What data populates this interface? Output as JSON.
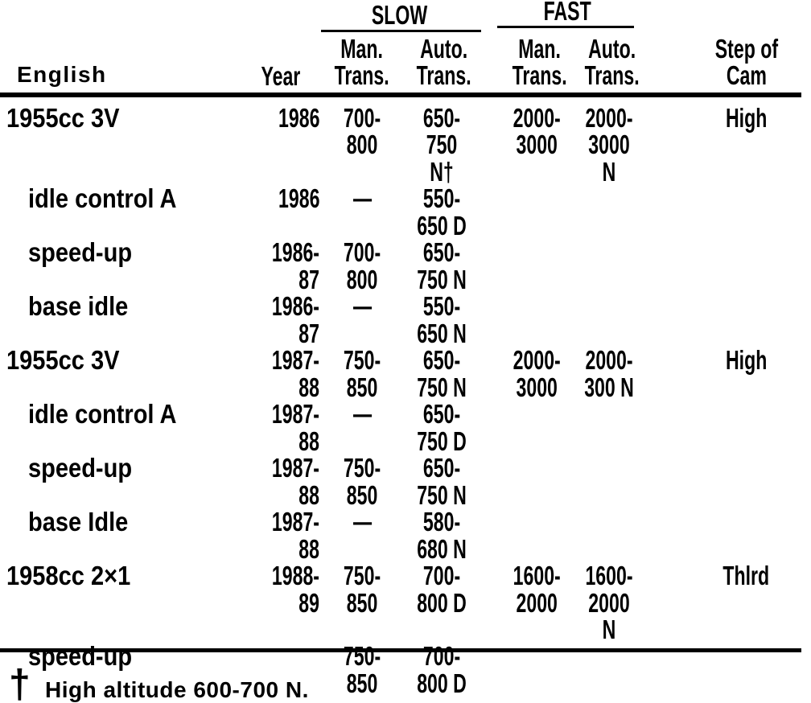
{
  "table": {
    "header": {
      "english": "English",
      "year": "Year",
      "slow_group": "SLOW",
      "fast_group": "FAST",
      "slow_man": "Man.\nTrans.",
      "slow_auto": "Auto.\nTrans.",
      "fast_man": "Man.\nTrans.",
      "fast_auto": "Auto.\nTrans.",
      "step_of_cam": "Step of\nCam"
    },
    "rows": [
      {
        "name": "1955cc 3V",
        "indent": false,
        "year": "1986",
        "slow_man": "700-\n800",
        "slow_auto": "650-\n750 N†",
        "fast_man": "2000-\n3000",
        "fast_auto": "2000-\n3000 N",
        "cam": "High"
      },
      {
        "name": "idle control A",
        "indent": true,
        "year": "1986",
        "slow_man": "—",
        "slow_auto": "550-\n650 D",
        "fast_man": "",
        "fast_auto": "",
        "cam": ""
      },
      {
        "name": "speed-up",
        "indent": true,
        "year": "1986-87",
        "slow_man": "700-\n800",
        "slow_auto": "650-\n750 N",
        "fast_man": "",
        "fast_auto": "",
        "cam": ""
      },
      {
        "name": "base idle",
        "indent": true,
        "year": "1986-87",
        "slow_man": "—",
        "slow_auto": "550-\n650 N",
        "fast_man": "",
        "fast_auto": "",
        "cam": ""
      },
      {
        "name": "1955cc 3V",
        "indent": false,
        "year": "1987-88",
        "slow_man": "750-\n850",
        "slow_auto": "650-\n750 N",
        "fast_man": "2000-\n3000",
        "fast_auto": "2000-\n300 N",
        "cam": "High"
      },
      {
        "name": "idle control A",
        "indent": true,
        "year": "1987-88",
        "slow_man": "—",
        "slow_auto": "650-\n750 D",
        "fast_man": "",
        "fast_auto": "",
        "cam": ""
      },
      {
        "name": "speed-up",
        "indent": true,
        "year": "1987-88",
        "slow_man": "750-\n850",
        "slow_auto": "650-\n750 N",
        "fast_man": "",
        "fast_auto": "",
        "cam": ""
      },
      {
        "name": "base Idle",
        "indent": true,
        "year": "1987-88",
        "slow_man": "—",
        "slow_auto": "580-\n680 N",
        "fast_man": "",
        "fast_auto": "",
        "cam": ""
      },
      {
        "name": "1958cc 2×1",
        "indent": false,
        "year": "1988-89",
        "slow_man": "750-\n850",
        "slow_auto": "700-\n800 D",
        "fast_man": "1600-\n2000",
        "fast_auto": "1600-\n2000 N",
        "cam": "Thlrd"
      },
      {
        "name": "speed-up",
        "indent": true,
        "year": "",
        "slow_man": "750-\n850",
        "slow_auto": "700-\n800 D",
        "fast_man": "",
        "fast_auto": "",
        "cam": ""
      }
    ]
  },
  "footnote": {
    "marker": "†",
    "text": "High altitude 600-700 N."
  },
  "colors": {
    "ink": "#000000",
    "paper": "#ffffff"
  }
}
